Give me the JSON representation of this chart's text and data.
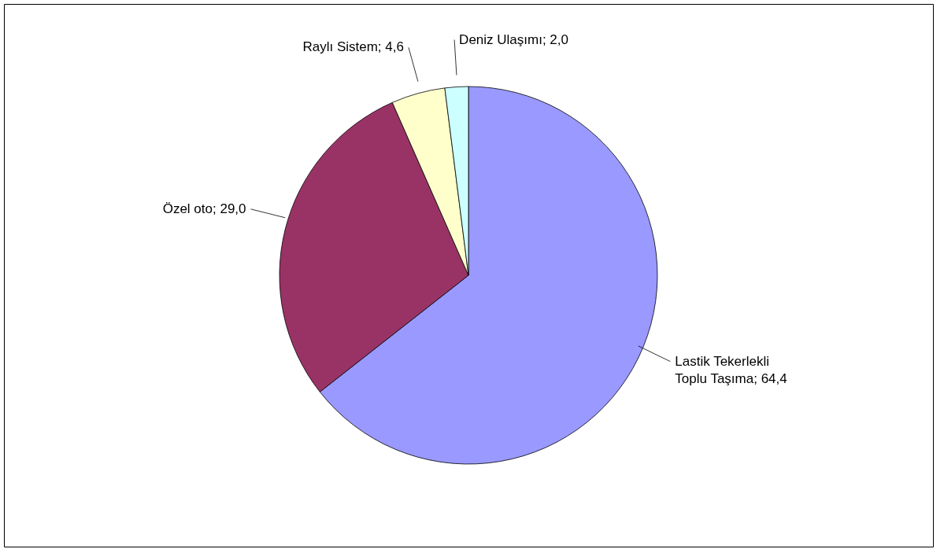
{
  "chart_data": {
    "type": "pie",
    "categories": [
      "Lastik Tekerlekli Toplu Taşıma",
      "Özel oto",
      "Raylı Sistem",
      "Deniz Ulaşımı"
    ],
    "values": [
      64.4,
      29.0,
      4.6,
      2.0
    ],
    "value_labels": [
      "64,4",
      "29,0",
      "4,6",
      "2,0"
    ],
    "colors": [
      "#9999ff",
      "#993366",
      "#ffffcc",
      "#ccffff"
    ],
    "legend": false
  }
}
